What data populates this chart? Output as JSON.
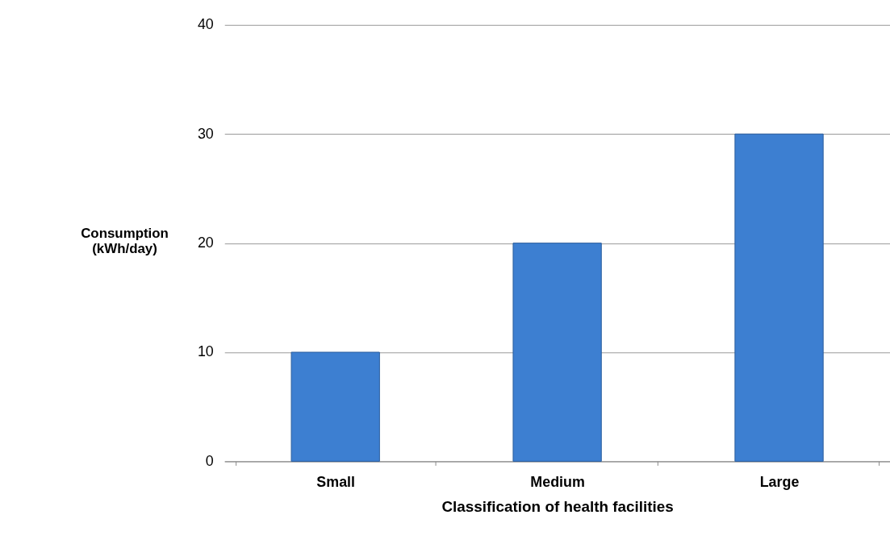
{
  "chart_data": {
    "type": "bar",
    "xlabel": "Classification of health facilities",
    "ylabel": "Consumption\n(kWh/day)",
    "categories": [
      "Small",
      "Medium",
      "Large"
    ],
    "series": [
      {
        "color": "#3d7fd1",
        "values": [
          10,
          20,
          30
        ]
      }
    ],
    "ylim": [
      0,
      40
    ],
    "yticks": [
      0,
      10,
      20,
      30,
      40
    ],
    "grid": "y"
  }
}
